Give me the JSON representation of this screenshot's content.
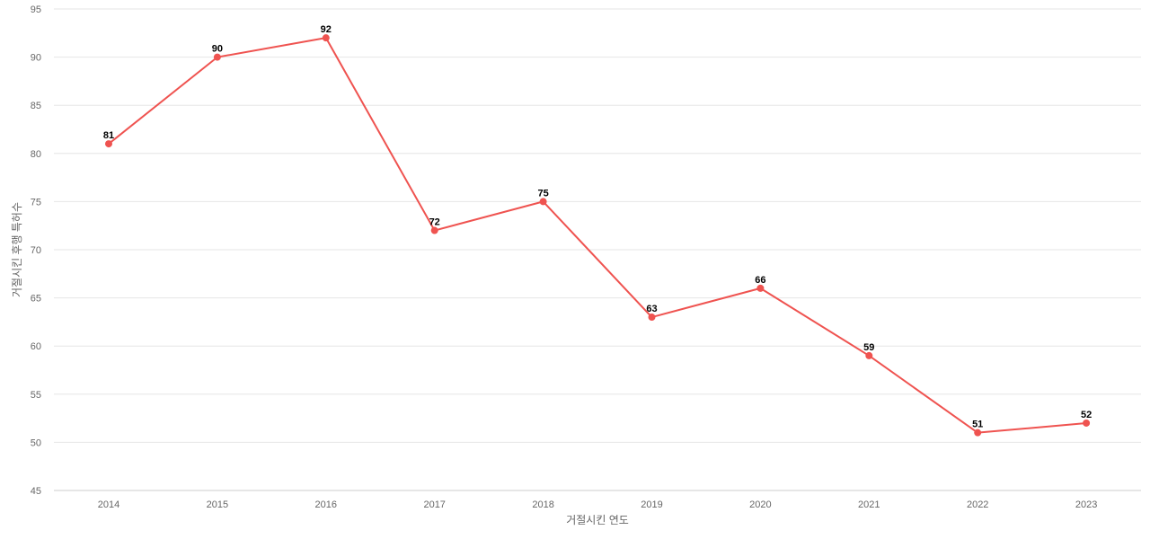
{
  "chart_data": {
    "type": "line",
    "title": "",
    "xlabel": "거절시킨 연도",
    "ylabel": "거절시킨 후행 특허수",
    "categories": [
      "2014",
      "2015",
      "2016",
      "2017",
      "2018",
      "2019",
      "2020",
      "2021",
      "2022",
      "2023"
    ],
    "series": [
      {
        "values": [
          81,
          90,
          92,
          72,
          75,
          63,
          66,
          59,
          51,
          52
        ],
        "color": "#ef5350"
      }
    ],
    "ylim": [
      45,
      95
    ],
    "yticks": [
      45,
      50,
      55,
      60,
      65,
      70,
      75,
      80,
      85,
      90,
      95
    ],
    "grid": true,
    "legend": "none",
    "data_labels": true
  }
}
